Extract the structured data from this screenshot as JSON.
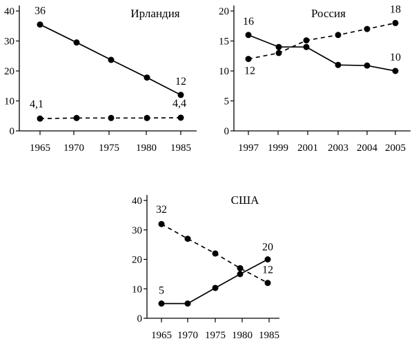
{
  "chart_data": [
    {
      "type": "line",
      "title": "Ирландия",
      "categories": [
        "1965",
        "1970",
        "1975",
        "1980",
        "1985"
      ],
      "x_ticks": [
        "1965",
        "1970",
        "1975",
        "1980",
        "1985"
      ],
      "y_ticks": [
        "0",
        "10",
        "20",
        "30",
        "40"
      ],
      "ylim": [
        0,
        40
      ],
      "grid": false,
      "series": [
        {
          "style": "solid",
          "values": [
            35.5,
            29.5,
            23.7,
            17.8,
            12
          ]
        },
        {
          "style": "dashed",
          "values": [
            4.1,
            4.3,
            4.3,
            4.3,
            4.4
          ]
        }
      ],
      "labels": [
        {
          "text": "36",
          "series": 0,
          "point": 0
        },
        {
          "text": "12",
          "series": 0,
          "point": 4
        },
        {
          "text": "4,1",
          "series": 1,
          "point": 0
        },
        {
          "text": "4,4",
          "series": 1,
          "point": 4
        }
      ]
    },
    {
      "type": "line",
      "title": "Россия",
      "categories": [
        "1997",
        "1999",
        "2001",
        "2003",
        "2004",
        "2005"
      ],
      "x_ticks": [
        "1997",
        "1999",
        "2001",
        "2003",
        "2004",
        "2005"
      ],
      "y_ticks": [
        "0",
        "5",
        "10",
        "15",
        "20"
      ],
      "ylim": [
        0,
        20
      ],
      "grid": false,
      "series": [
        {
          "style": "solid",
          "values": [
            16,
            14,
            14,
            11,
            10.9,
            10
          ]
        },
        {
          "style": "dashed",
          "values": [
            12,
            13,
            15.1,
            16,
            17,
            18
          ]
        }
      ],
      "labels": [
        {
          "text": "16",
          "series": 0,
          "point": 0
        },
        {
          "text": "10",
          "series": 0,
          "point": 5
        },
        {
          "text": "12",
          "series": 1,
          "point": 0
        },
        {
          "text": "18",
          "series": 1,
          "point": 5
        }
      ]
    },
    {
      "type": "line",
      "title": "США",
      "categories": [
        "1965",
        "1970",
        "1975",
        "1980",
        "1985"
      ],
      "x_ticks": [
        "1965",
        "1970",
        "1975",
        "1980",
        "1985"
      ],
      "y_ticks": [
        "0",
        "10",
        "20",
        "30",
        "40"
      ],
      "ylim": [
        0,
        40
      ],
      "grid": false,
      "series": [
        {
          "style": "solid",
          "values": [
            5,
            5,
            10.3,
            15,
            20
          ]
        },
        {
          "style": "dashed",
          "values": [
            32,
            27,
            22,
            17,
            12
          ]
        }
      ],
      "labels": [
        {
          "text": "5",
          "series": 0,
          "point": 0
        },
        {
          "text": "20",
          "series": 0,
          "point": 4
        },
        {
          "text": "32",
          "series": 1,
          "point": 0
        },
        {
          "text": "12",
          "series": 1,
          "point": 4
        }
      ]
    }
  ]
}
